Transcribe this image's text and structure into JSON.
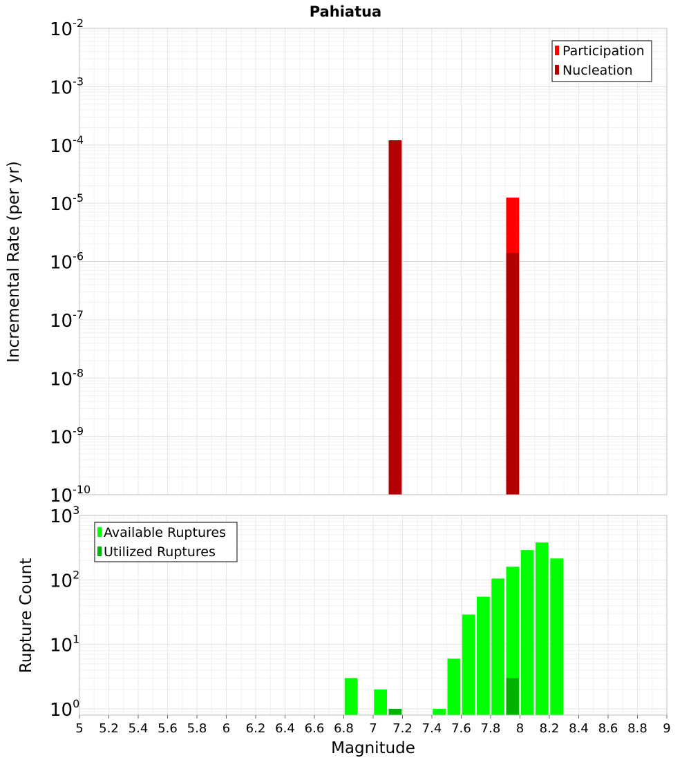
{
  "chart_data": [
    {
      "type": "bar",
      "title": "Pahiatua",
      "ylabel": "Incremental Rate (per yr)",
      "yscale": "log",
      "ylim": [
        1e-10,
        0.01
      ],
      "xlim": [
        5,
        9
      ],
      "legend_position": "top-right",
      "grid": true,
      "series": [
        {
          "name": "Participation",
          "color": "#ff0000",
          "x": [
            7.15,
            7.95
          ],
          "values": [
            0.00012,
            1.25e-05
          ]
        },
        {
          "name": "Nucleation",
          "color": "#b30000",
          "x": [
            7.15,
            7.95
          ],
          "values": [
            0.00012,
            1.4e-06
          ]
        }
      ],
      "y_ticks": [
        {
          "base": "10",
          "exp": "-2",
          "value": 0.01
        },
        {
          "base": "10",
          "exp": "-3",
          "value": 0.001
        },
        {
          "base": "10",
          "exp": "-4",
          "value": 0.0001
        },
        {
          "base": "10",
          "exp": "-5",
          "value": 1e-05
        },
        {
          "base": "10",
          "exp": "-6",
          "value": 1e-06
        },
        {
          "base": "10",
          "exp": "-7",
          "value": 1e-07
        },
        {
          "base": "10",
          "exp": "-8",
          "value": 1e-08
        },
        {
          "base": "10",
          "exp": "-9",
          "value": 1e-09
        },
        {
          "base": "10",
          "exp": "-10",
          "value": 1e-10
        }
      ]
    },
    {
      "type": "bar",
      "ylabel": "Rupture Count",
      "xlabel": "Magnitude",
      "yscale": "log",
      "ylim": [
        0.8,
        1000
      ],
      "xlim": [
        5,
        9
      ],
      "legend_position": "top-left",
      "grid": true,
      "series": [
        {
          "name": "Available Ruptures",
          "color": "#00ff00",
          "x": [
            6.85,
            7.05,
            7.15,
            7.45,
            7.55,
            7.65,
            7.75,
            7.85,
            7.95,
            8.05,
            8.15,
            8.25
          ],
          "values": [
            3,
            2,
            1,
            1,
            6,
            29,
            55,
            105,
            160,
            290,
            380,
            215
          ]
        },
        {
          "name": "Utilized Ruptures",
          "color": "#00b300",
          "x": [
            7.15,
            7.95
          ],
          "values": [
            1,
            3
          ]
        }
      ],
      "y_ticks": [
        {
          "base": "10",
          "exp": "3",
          "value": 1000
        },
        {
          "base": "10",
          "exp": "2",
          "value": 100
        },
        {
          "base": "10",
          "exp": "1",
          "value": 10
        },
        {
          "base": "10",
          "exp": "0",
          "value": 1
        }
      ],
      "x_ticks": [
        "5",
        "5.2",
        "5.4",
        "5.6",
        "5.8",
        "6",
        "6.2",
        "6.4",
        "6.6",
        "6.8",
        "7",
        "7.2",
        "7.4",
        "7.6",
        "7.8",
        "8",
        "8.2",
        "8.4",
        "8.6",
        "8.8",
        "9"
      ]
    }
  ]
}
